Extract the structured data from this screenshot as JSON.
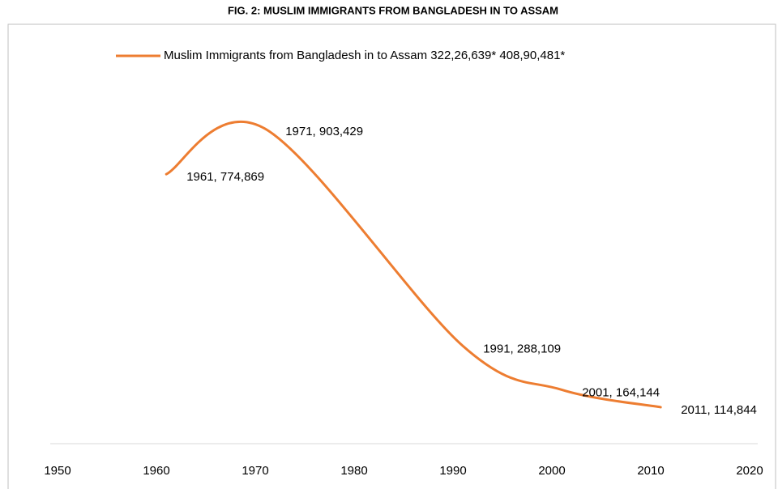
{
  "chart_data": {
    "type": "line",
    "title": "FIG. 2: MUSLIM IMMIGRANTS FROM BANGLADESH IN TO ASSAM",
    "x": [
      1961,
      1971,
      1991,
      2001,
      2011
    ],
    "series": [
      {
        "name": "Muslim Immigrants from Bangladesh in to Assam 322,26,639* 408,90,481*",
        "color": "#ed7d31",
        "values": [
          774869,
          903429,
          288109,
          164144,
          114844
        ],
        "value_labels": [
          "1961, 774,869",
          "1971, 903,429",
          "1991, 288,109",
          "2001, 164,144",
          "2011, 114,844"
        ]
      }
    ],
    "xlim": [
      1950,
      2020
    ],
    "xticks": [
      1950,
      1960,
      1970,
      1980,
      1990,
      2000,
      2010,
      2020
    ],
    "ylim": [
      0,
      1000000
    ],
    "legend": "top",
    "smooth": true
  }
}
